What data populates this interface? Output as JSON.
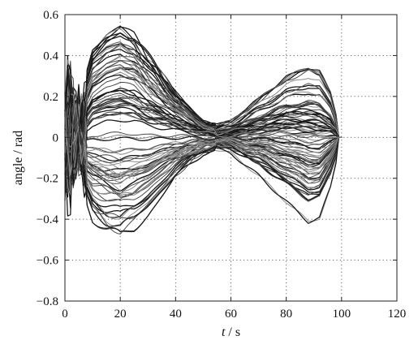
{
  "chart_data": {
    "type": "line",
    "title": "",
    "xlabel_italic": "t",
    "xlabel_rest": " / s",
    "ylabel": "angle / rad",
    "xlim": [
      0,
      120
    ],
    "ylim": [
      -0.8,
      0.6
    ],
    "grid": true,
    "legend": "none",
    "x_ticks": [
      0,
      20,
      40,
      60,
      80,
      100,
      120
    ],
    "x_tick_labels": [
      "0",
      "20",
      "40",
      "60",
      "80",
      "100",
      "120"
    ],
    "y_ticks": [
      -0.8,
      -0.6,
      -0.4,
      -0.2,
      0,
      0.2,
      0.4,
      0.6
    ],
    "y_tick_labels": [
      "−0.8",
      "−0.6",
      "−0.4",
      "−0.2",
      "0",
      "0.2",
      "0.4",
      "0.6"
    ],
    "envelope": {
      "t": [
        0,
        2,
        4,
        6,
        10,
        15,
        20,
        25,
        30,
        40,
        50,
        55,
        60,
        70,
        80,
        88,
        92,
        96,
        100
      ],
      "upper": [
        0.3,
        0.47,
        0.25,
        0.22,
        0.42,
        0.5,
        0.54,
        0.5,
        0.4,
        0.22,
        0.08,
        0.06,
        0.08,
        0.19,
        0.3,
        0.35,
        0.33,
        0.22,
        0.0
      ],
      "lower": [
        -0.32,
        -0.45,
        -0.2,
        -0.25,
        -0.4,
        -0.46,
        -0.5,
        -0.46,
        -0.38,
        -0.2,
        -0.08,
        -0.06,
        -0.08,
        -0.19,
        -0.32,
        -0.42,
        -0.4,
        -0.25,
        0.0
      ]
    },
    "series_count": 90,
    "colors": {
      "dark": "#1a1a1a",
      "mid": "#4a4a4a",
      "light": "#8a8a8a"
    }
  }
}
